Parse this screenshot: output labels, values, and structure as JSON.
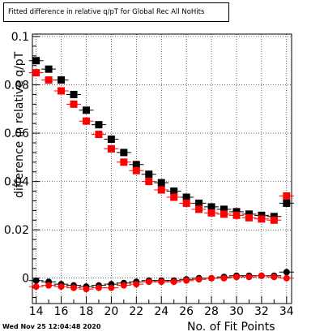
{
  "chart_data": {
    "type": "scatter",
    "title": "Fitted difference in relative q/pT for Global Rec All NoHits",
    "xlabel": "No. of Fit Points",
    "ylabel": "difference in relative q/pT",
    "xlim": [
      13.7,
      34.4
    ],
    "ylim": [
      -0.0105,
      0.101
    ],
    "x_ticks": [
      14,
      16,
      18,
      20,
      22,
      24,
      26,
      28,
      30,
      32,
      34
    ],
    "x_tick_labels": [
      "14",
      "16",
      "18",
      "20",
      "22",
      "24",
      "26",
      "28",
      "30",
      "32",
      "34"
    ],
    "y_ticks": [
      0,
      0.02,
      0.04,
      0.06,
      0.08,
      0.1
    ],
    "y_tick_labels": [
      "0",
      "0.02",
      "0.04",
      "0.06",
      "0.08",
      "0.1"
    ],
    "grid": true,
    "x": [
      14,
      15,
      16,
      17,
      18,
      19,
      20,
      21,
      22,
      23,
      24,
      25,
      26,
      27,
      28,
      29,
      30,
      31,
      32,
      33,
      34
    ],
    "series": [
      {
        "marker": "square",
        "color": "#000000",
        "values": [
          0.09,
          0.0865,
          0.082,
          0.076,
          0.0695,
          0.0635,
          0.0575,
          0.052,
          0.047,
          0.043,
          0.0395,
          0.036,
          0.0335,
          0.031,
          0.0295,
          0.0285,
          0.0275,
          0.0265,
          0.026,
          0.0255,
          0.031
        ]
      },
      {
        "marker": "square",
        "color": "#ff0000",
        "values": [
          0.085,
          0.082,
          0.0775,
          0.072,
          0.065,
          0.0595,
          0.0535,
          0.048,
          0.0445,
          0.04,
          0.0365,
          0.0335,
          0.031,
          0.0285,
          0.027,
          0.0265,
          0.026,
          0.025,
          0.0245,
          0.024,
          0.034
        ]
      },
      {
        "marker": "circle",
        "color": "#000000",
        "values": [
          -0.001,
          -0.0015,
          -0.0025,
          -0.003,
          -0.0035,
          -0.003,
          -0.0025,
          -0.002,
          -0.0015,
          -0.001,
          -0.001,
          -0.001,
          -0.0005,
          0.0,
          0.0,
          0.0005,
          0.001,
          0.001,
          0.001,
          0.001,
          0.0025
        ]
      },
      {
        "marker": "circle",
        "color": "#ff0000",
        "values": [
          -0.0035,
          -0.003,
          -0.0035,
          -0.004,
          -0.0045,
          -0.004,
          -0.004,
          -0.003,
          -0.0025,
          -0.0015,
          -0.0015,
          -0.0015,
          -0.001,
          -0.0005,
          0.0,
          0.0,
          0.0005,
          0.0005,
          0.001,
          0.0005,
          0.0
        ]
      }
    ]
  },
  "timestamp": "Wed Nov 25 12:04:48 2020"
}
